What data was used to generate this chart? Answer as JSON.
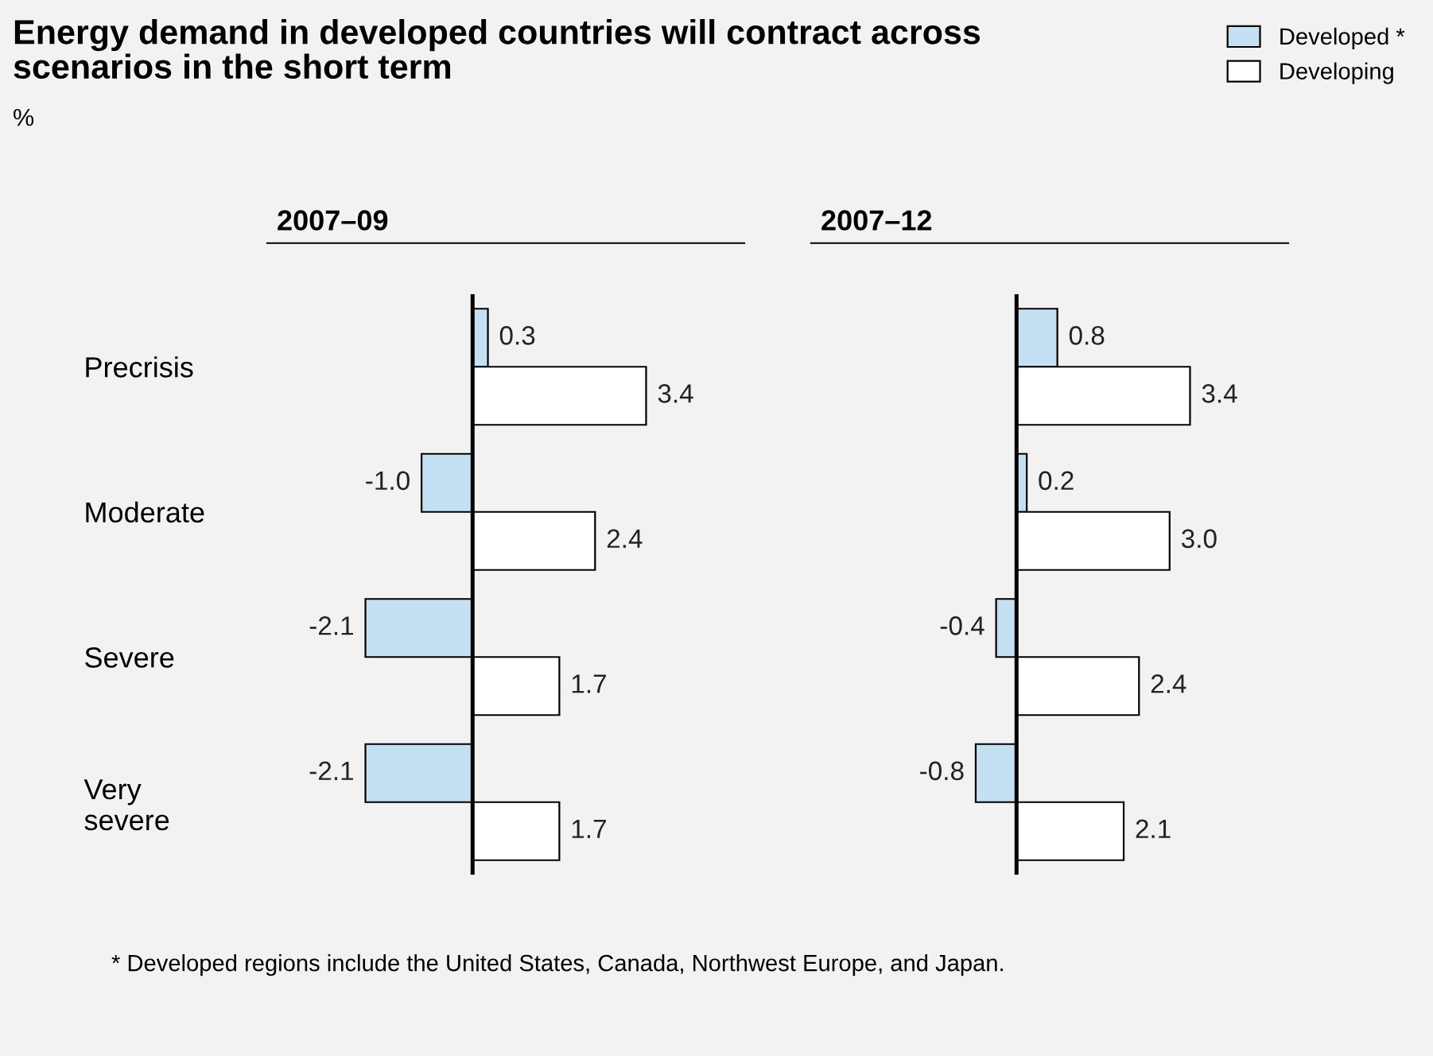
{
  "chart_data": [
    {
      "type": "bar",
      "orientation": "horizontal",
      "title": "Energy demand in developed countries will contract across\nscenarios in the short term",
      "subtitle": "%",
      "legend": "top right",
      "tick_labels": "y",
      "annotations": [
        "* Developed regions include the United States, Canada, Northwest Europe, and Japan."
      ],
      "xlabel": "2007–09",
      "categories": [
        "Precrisis",
        "Moderate",
        "Severe",
        "Very\nsevere"
      ],
      "series": [
        {
          "name": "Developed *",
          "color": "#c6e0f3",
          "values": [
            0.3,
            -1.0,
            -2.1,
            -2.1
          ],
          "value_labels": [
            "0.3",
            "-1.0",
            "-2.1",
            "-2.1"
          ]
        },
        {
          "name": "Developing",
          "color": "#ffffff",
          "values": [
            3.4,
            2.4,
            1.7,
            1.7
          ],
          "value_labels": [
            "3.4",
            "2.4",
            "1.7",
            "1.7"
          ]
        }
      ]
    },
    {
      "type": "bar",
      "orientation": "horizontal",
      "tick_labels": false,
      "xlabel": "2007–12",
      "categories": [
        null,
        null,
        null,
        null
      ],
      "series": [
        {
          "color": "#c6e0f3",
          "values": [
            0.8,
            0.2,
            -0.4,
            -0.8
          ],
          "value_labels": [
            "0.8",
            "0.2",
            "-0.4",
            "-0.8"
          ]
        },
        {
          "color": "#ffffff",
          "values": [
            3.4,
            3.0,
            2.4,
            2.1
          ],
          "value_labels": [
            "3.4",
            "3.0",
            "2.4",
            "2.1"
          ]
        }
      ]
    }
  ]
}
